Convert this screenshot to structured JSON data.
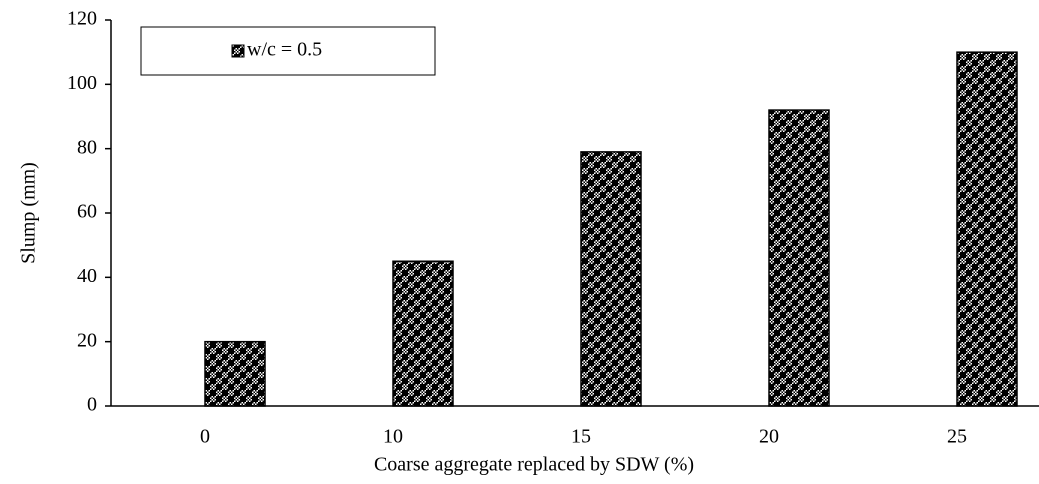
{
  "chart_data": {
    "type": "bar",
    "x_label": "Coarse aggregate replaced by SDW (%)",
    "y_label": "Slump (mm)",
    "categories": [
      "0",
      "10",
      "15",
      "20",
      "25"
    ],
    "series": [
      {
        "name": "w/c = 0.5",
        "color": "#000000",
        "values": [
          20,
          45,
          79,
          92,
          110
        ]
      }
    ],
    "ylim": [
      0,
      120
    ],
    "yticks": [
      0,
      20,
      40,
      60,
      80,
      100,
      120
    ],
    "grid": false,
    "legend": "upper left"
  }
}
